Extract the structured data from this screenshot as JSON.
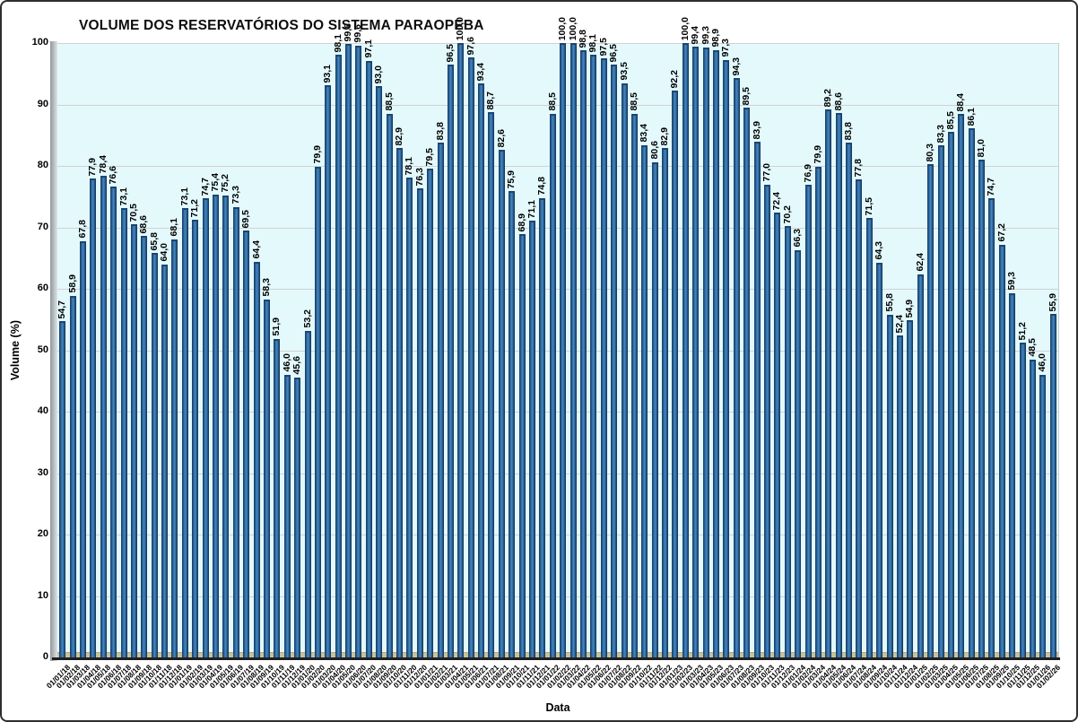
{
  "chart_data": {
    "type": "bar",
    "title": "VOLUME DOS RESERVATÓRIOS DO SISTEMA PARAOPEBA",
    "xlabel": "Data",
    "ylabel": "Volume (%)",
    "ylim": [
      0,
      100
    ],
    "yticks": [
      0,
      10,
      20,
      30,
      40,
      50,
      60,
      70,
      80,
      90,
      100
    ],
    "grid": true,
    "legend": false,
    "decimal_separator": ",",
    "bar_color": "#2c6aa2",
    "bar_edge_color": "#16395f",
    "plot_bg_color": "#e3f9fc",
    "floor_color": "#cbc198",
    "categories": [
      "01/01/18",
      "01/02/18",
      "01/03/18",
      "01/04/18",
      "01/05/18",
      "01/06/18",
      "01/07/18",
      "01/08/18",
      "01/09/18",
      "01/10/18",
      "01/11/18",
      "01/12/18",
      "01/01/19",
      "01/02/19",
      "01/03/19",
      "01/04/19",
      "01/05/19",
      "01/06/19",
      "01/07/19",
      "01/08/19",
      "01/09/19",
      "01/10/19",
      "01/11/19",
      "01/12/19",
      "01/01/20",
      "01/02/20",
      "01/03/20",
      "01/04/20",
      "01/05/20",
      "01/06/20",
      "01/07/20",
      "01/08/20",
      "01/09/20",
      "01/10/20",
      "01/11/20",
      "01/12/20",
      "01/01/21",
      "01/02/21",
      "01/03/21",
      "01/04/21",
      "01/05/21",
      "01/06/21",
      "01/07/21",
      "01/08/21",
      "01/09/21",
      "01/10/21",
      "01/11/21",
      "01/12/21",
      "01/01/22",
      "01/02/22",
      "01/03/22",
      "01/04/22",
      "01/05/22",
      "01/06/22",
      "01/07/22",
      "01/08/22",
      "01/09/22",
      "01/10/22",
      "01/11/22",
      "01/12/22",
      "01/01/23",
      "01/02/23",
      "01/03/23",
      "01/04/23",
      "01/05/23",
      "01/06/23",
      "01/07/23",
      "01/08/23",
      "01/09/23",
      "01/10/23",
      "01/11/23",
      "01/12/23",
      "01/01/24",
      "01/02/24",
      "01/03/24",
      "01/04/24",
      "01/05/24",
      "01/06/24",
      "01/07/24",
      "01/08/24",
      "01/09/24",
      "01/10/24",
      "01/11/24",
      "01/12/24",
      "01/01/25",
      "01/02/25",
      "01/03/25",
      "01/04/25",
      "01/05/25",
      "01/06/25",
      "01/07/25",
      "01/08/25",
      "01/09/25",
      "01/10/25",
      "01/11/25",
      "01/12/25",
      "01/01/26",
      "01/02/26"
    ],
    "values": [
      54.7,
      58.9,
      67.8,
      77.9,
      78.4,
      76.6,
      73.1,
      70.5,
      68.6,
      65.8,
      64.0,
      68.1,
      73.1,
      71.2,
      74.7,
      75.4,
      75.2,
      73.3,
      69.5,
      64.4,
      58.3,
      51.9,
      46.0,
      45.6,
      53.2,
      79.9,
      93.1,
      98.1,
      99.8,
      99.6,
      97.1,
      93.0,
      88.5,
      82.9,
      78.1,
      76.3,
      79.5,
      83.8,
      96.5,
      100.0,
      97.6,
      93.4,
      88.7,
      82.6,
      75.9,
      68.9,
      71.1,
      74.8,
      88.5,
      100.0,
      100.0,
      98.8,
      98.1,
      97.5,
      96.5,
      93.5,
      88.5,
      83.4,
      80.6,
      82.9,
      92.2,
      100.0,
      99.4,
      99.3,
      98.9,
      97.3,
      94.3,
      89.5,
      83.9,
      77.0,
      72.4,
      70.2,
      66.3,
      76.9,
      79.9,
      89.2,
      88.6,
      83.8,
      77.8,
      71.5,
      64.3,
      55.8,
      52.4,
      54.9,
      62.4,
      80.3,
      83.3,
      85.5,
      88.4,
      86.1,
      81.0,
      74.7,
      67.2,
      59.3,
      51.2,
      48.5,
      46.0,
      55.9
    ]
  }
}
